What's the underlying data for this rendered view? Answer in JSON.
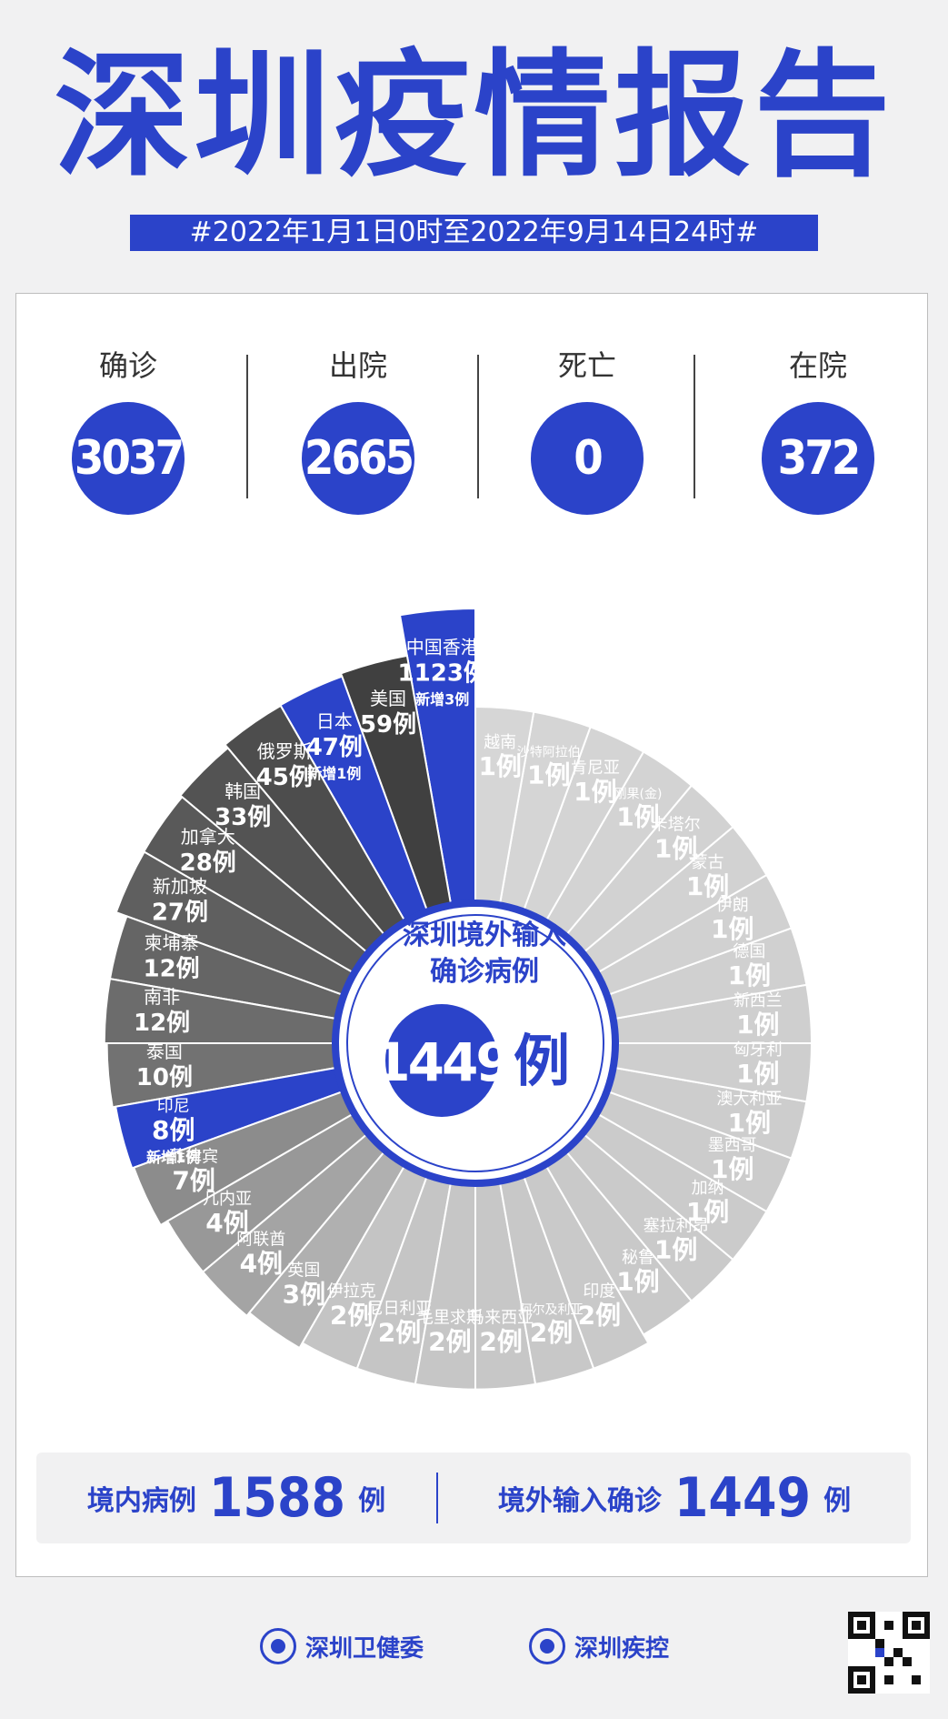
{
  "title": "深圳疫情报告",
  "period": "#2022年1月1日0时至2022年9月14日24时#",
  "stats": [
    {
      "label": "确诊",
      "value": "3037"
    },
    {
      "label": "出院",
      "value": "2665"
    },
    {
      "label": "死亡",
      "value": "0"
    },
    {
      "label": "在院",
      "value": "372"
    }
  ],
  "center": {
    "line1": "深圳境外输入",
    "line2": "确诊病例",
    "value": "1449",
    "unit": "例"
  },
  "summary": {
    "domestic_label": "境内病例",
    "domestic_value": "1588",
    "domestic_unit": "例",
    "imported_label": "境外输入确诊",
    "imported_value": "1449",
    "imported_unit": "例"
  },
  "footer": {
    "org1": "深圳卫健委",
    "org2": "深圳疾控"
  },
  "colors": {
    "brand": "#2b43c9",
    "dark": "#3a3a3a",
    "light": "#cfcfcf"
  },
  "chart_data": {
    "type": "bar",
    "style": "polar-bar",
    "categories": [
      "中国香港",
      "美国",
      "日本",
      "俄罗斯",
      "韩国",
      "加拿大",
      "新加坡",
      "柬埔寨",
      "南非",
      "泰国",
      "印尼",
      "菲律宾",
      "几内亚",
      "阿联酋",
      "英国",
      "伊拉克",
      "尼日利亚",
      "毛里求斯",
      "马来西亚",
      "阿尔及利亚",
      "印度",
      "秘鲁",
      "塞拉利昂",
      "加纳",
      "墨西哥",
      "澳大利亚",
      "匈牙利",
      "新西兰",
      "德国",
      "伊朗",
      "蒙古",
      "卡塔尔",
      "刚果(金)",
      "肯尼亚",
      "沙特阿拉伯",
      "越南"
    ],
    "values": [
      1123,
      59,
      47,
      45,
      33,
      28,
      27,
      12,
      12,
      10,
      8,
      7,
      4,
      4,
      3,
      2,
      2,
      2,
      2,
      2,
      2,
      1,
      1,
      1,
      1,
      1,
      1,
      1,
      1,
      1,
      1,
      1,
      1,
      1,
      1,
      1
    ],
    "value_labels": [
      "1123例",
      "59例",
      "47例",
      "45例",
      "33例",
      "28例",
      "27例",
      "12例",
      "12例",
      "10例",
      "8例",
      "7例",
      "4例",
      "4例",
      "3例",
      "2例",
      "2例",
      "2例",
      "2例",
      "2例",
      "2例",
      "1例",
      "1例",
      "1例",
      "1例",
      "1例",
      "1例",
      "1例",
      "1例",
      "1例",
      "1例",
      "1例",
      "1例",
      "1例",
      "1例",
      "1例"
    ],
    "annotations": {
      "中国香港": "新增3例",
      "日本": "新增1例",
      "印尼": "新增1例"
    },
    "highlight": [
      "中国香港",
      "日本",
      "印尼"
    ],
    "total": 1449
  }
}
